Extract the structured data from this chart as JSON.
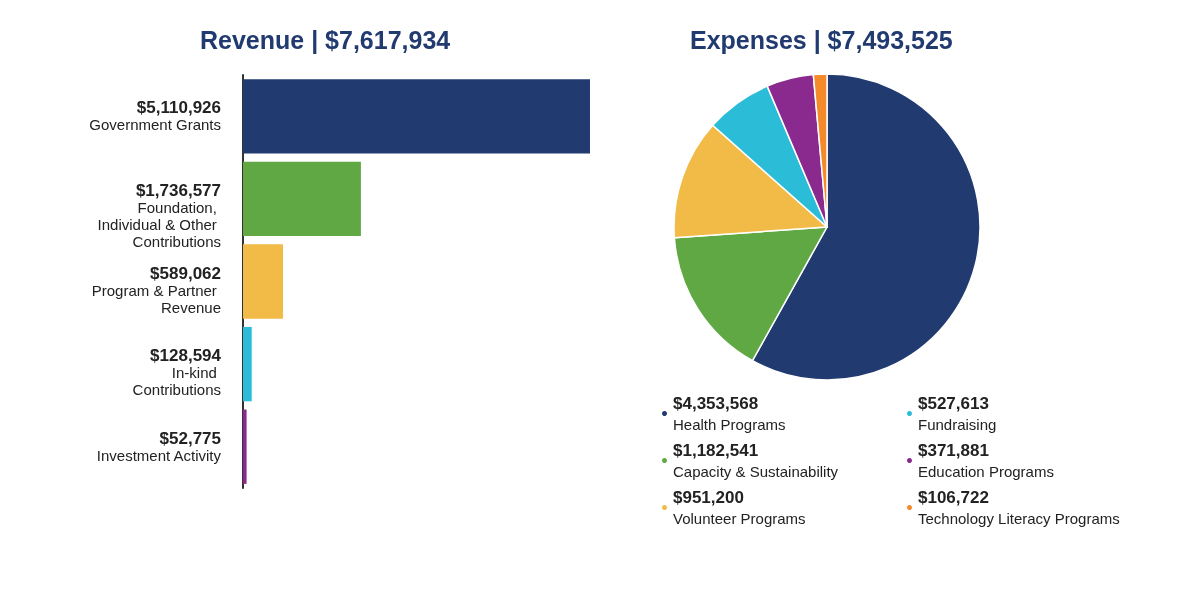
{
  "chart_data": [
    {
      "type": "bar",
      "orientation": "horizontal",
      "title": "Revenue | $7,617,934",
      "categories": [
        "Government Grants",
        "Foundation, Individual & Other Contributions",
        "Program & Partner Revenue",
        "In-kind Contributions",
        "Investment Activity"
      ],
      "values": [
        5110926,
        1736577,
        589062,
        128594,
        52775
      ],
      "colors": [
        "#213a70",
        "#5fa843",
        "#f2bb48",
        "#2bbcd8",
        "#8b2a8e"
      ],
      "value_labels": [
        "$5,110,926",
        "$1,736,577",
        "$589,062",
        "$128,594",
        "$52,775"
      ],
      "grid": false,
      "legend": false
    },
    {
      "type": "pie",
      "title": "Expenses | $7,493,525",
      "categories": [
        "Health Programs",
        "Capacity & Sustainability",
        "Volunteer Programs",
        "Fundraising",
        "Education Programs",
        "Technology Literacy Programs"
      ],
      "values": [
        4353568,
        1182541,
        951200,
        527613,
        371881,
        106722
      ],
      "colors": [
        "#213a70",
        "#5fa843",
        "#f2bb48",
        "#2bbcd8",
        "#8b2a8e",
        "#f58a2a"
      ],
      "value_labels": [
        "$4,353,568",
        "$1,182,541",
        "$951,200",
        "$527,613",
        "$371,881",
        "$106,722"
      ],
      "legend": "bottom"
    }
  ]
}
